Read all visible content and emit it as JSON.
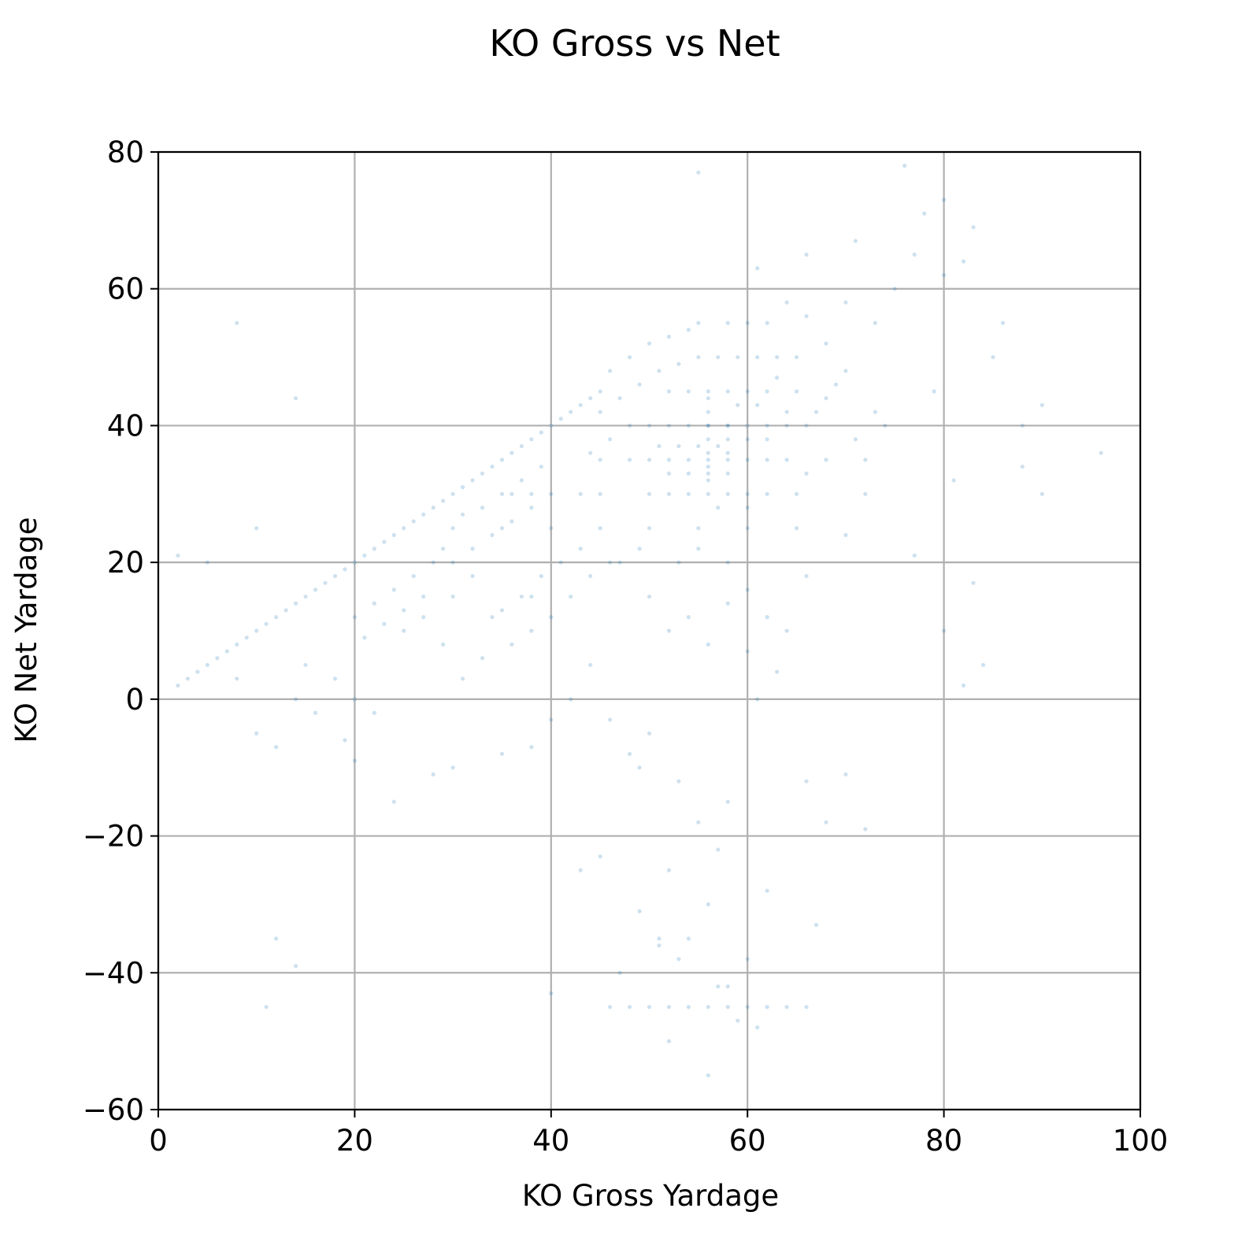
{
  "chart_data": {
    "type": "scatter",
    "title": "KO Gross vs Net",
    "xlabel": "KO Gross Yardage",
    "ylabel": "KO Net Yardage",
    "xlim": [
      0,
      100
    ],
    "ylim": [
      -60,
      80
    ],
    "xticks": [
      0,
      20,
      40,
      60,
      80,
      100
    ],
    "yticks": [
      -60,
      -40,
      -20,
      0,
      20,
      40,
      60,
      80
    ],
    "xtick_labels": [
      "0",
      "20",
      "40",
      "60",
      "80",
      "100"
    ],
    "ytick_labels": [
      "−60",
      "−40",
      "−20",
      "0",
      "20",
      "40",
      "60",
      "80"
    ],
    "grid": true,
    "point_color": "#1f77b4",
    "point_alpha": 0.1,
    "series": [
      {
        "points": [
          [
            2,
            2
          ],
          [
            3,
            3
          ],
          [
            4,
            4
          ],
          [
            5,
            5
          ],
          [
            6,
            6
          ],
          [
            7,
            7
          ],
          [
            8,
            8
          ],
          [
            9,
            9
          ],
          [
            10,
            10
          ],
          [
            11,
            11
          ],
          [
            12,
            12
          ],
          [
            13,
            13
          ],
          [
            14,
            14
          ],
          [
            15,
            15
          ],
          [
            16,
            16
          ],
          [
            17,
            17
          ],
          [
            18,
            18
          ],
          [
            19,
            19
          ],
          [
            20,
            20
          ],
          [
            21,
            21
          ],
          [
            22,
            22
          ],
          [
            23,
            23
          ],
          [
            24,
            24
          ],
          [
            25,
            25
          ],
          [
            26,
            26
          ],
          [
            27,
            27
          ],
          [
            28,
            28
          ],
          [
            29,
            29
          ],
          [
            30,
            30
          ],
          [
            31,
            31
          ],
          [
            32,
            32
          ],
          [
            33,
            33
          ],
          [
            34,
            34
          ],
          [
            35,
            35
          ],
          [
            36,
            36
          ],
          [
            37,
            37
          ],
          [
            38,
            38
          ],
          [
            39,
            39
          ],
          [
            40,
            40
          ],
          [
            41,
            41
          ],
          [
            42,
            42
          ],
          [
            43,
            43
          ],
          [
            44,
            44
          ],
          [
            45,
            45
          ],
          [
            35,
            25
          ],
          [
            40,
            25
          ],
          [
            45,
            25
          ],
          [
            50,
            25
          ],
          [
            55,
            25
          ],
          [
            60,
            25
          ],
          [
            65,
            25
          ],
          [
            30,
            25
          ],
          [
            48,
            35
          ],
          [
            50,
            35
          ],
          [
            52,
            35
          ],
          [
            54,
            35
          ],
          [
            56,
            35
          ],
          [
            58,
            35
          ],
          [
            60,
            35
          ],
          [
            62,
            35
          ],
          [
            64,
            35
          ],
          [
            48,
            40
          ],
          [
            50,
            40
          ],
          [
            52,
            40
          ],
          [
            54,
            40
          ],
          [
            56,
            40
          ],
          [
            58,
            40
          ],
          [
            60,
            40
          ],
          [
            62,
            40
          ],
          [
            64,
            40
          ],
          [
            50,
            30
          ],
          [
            52,
            30
          ],
          [
            54,
            30
          ],
          [
            56,
            30
          ],
          [
            58,
            30
          ],
          [
            60,
            30
          ],
          [
            62,
            30
          ],
          [
            65,
            30
          ],
          [
            52,
            45
          ],
          [
            54,
            45
          ],
          [
            56,
            45
          ],
          [
            58,
            45
          ],
          [
            60,
            45
          ],
          [
            62,
            45
          ],
          [
            65,
            45
          ],
          [
            55,
            50
          ],
          [
            57,
            50
          ],
          [
            59,
            50
          ],
          [
            61,
            50
          ],
          [
            63,
            50
          ],
          [
            65,
            50
          ],
          [
            45,
            30
          ],
          [
            45,
            35
          ],
          [
            43,
            30
          ],
          [
            40,
            30
          ],
          [
            38,
            30
          ],
          [
            36,
            30
          ],
          [
            46,
            38
          ],
          [
            44,
            36
          ],
          [
            50,
            15
          ],
          [
            53,
            20
          ],
          [
            55,
            22
          ],
          [
            57,
            28
          ],
          [
            47,
            20
          ],
          [
            49,
            22
          ],
          [
            60,
            28
          ],
          [
            58,
            20
          ],
          [
            55,
            55
          ],
          [
            58,
            55
          ],
          [
            60,
            55
          ],
          [
            62,
            55
          ],
          [
            64,
            58
          ],
          [
            66,
            56
          ],
          [
            68,
            52
          ],
          [
            70,
            58
          ],
          [
            50,
            -45
          ],
          [
            52,
            -45
          ],
          [
            54,
            -45
          ],
          [
            56,
            -45
          ],
          [
            58,
            -45
          ],
          [
            60,
            -45
          ],
          [
            62,
            -45
          ],
          [
            64,
            -45
          ],
          [
            66,
            -45
          ],
          [
            46,
            -45
          ],
          [
            48,
            -45
          ],
          [
            53,
            -12
          ],
          [
            55,
            -18
          ],
          [
            56,
            -30
          ],
          [
            58,
            -15
          ],
          [
            50,
            -5
          ],
          [
            52,
            -25
          ],
          [
            57,
            -22
          ],
          [
            60,
            7
          ],
          [
            54,
            -35
          ],
          [
            51,
            -35
          ],
          [
            30,
            -10
          ],
          [
            28,
            -11
          ],
          [
            35,
            -8
          ],
          [
            38,
            -7
          ],
          [
            40,
            -3
          ],
          [
            42,
            0
          ],
          [
            44,
            5
          ],
          [
            46,
            -3
          ],
          [
            48,
            -8
          ],
          [
            49,
            -10
          ],
          [
            25,
            10
          ],
          [
            27,
            12
          ],
          [
            30,
            15
          ],
          [
            32,
            18
          ],
          [
            34,
            12
          ],
          [
            36,
            8
          ],
          [
            38,
            15
          ],
          [
            33,
            6
          ],
          [
            29,
            8
          ],
          [
            31,
            3
          ],
          [
            15,
            5
          ],
          [
            18,
            3
          ],
          [
            20,
            0
          ],
          [
            22,
            -2
          ],
          [
            12,
            -7
          ],
          [
            10,
            -5
          ],
          [
            14,
            0
          ],
          [
            8,
            3
          ],
          [
            16,
            -2
          ],
          [
            19,
            -6
          ],
          [
            70,
            -11
          ],
          [
            68,
            -18
          ],
          [
            72,
            -19
          ],
          [
            66,
            -12
          ],
          [
            67,
            -33
          ],
          [
            62,
            -28
          ],
          [
            60,
            -38
          ],
          [
            58,
            -42
          ],
          [
            56,
            -55
          ],
          [
            52,
            -50
          ],
          [
            70,
            24
          ],
          [
            72,
            30
          ],
          [
            74,
            40
          ],
          [
            73,
            55
          ],
          [
            75,
            60
          ],
          [
            77,
            65
          ],
          [
            80,
            62
          ],
          [
            82,
            64
          ],
          [
            85,
            50
          ],
          [
            88,
            40
          ],
          [
            76,
            78
          ],
          [
            55,
            77
          ],
          [
            80,
            73
          ],
          [
            78,
            71
          ],
          [
            83,
            69
          ],
          [
            71,
            67
          ],
          [
            66,
            65
          ],
          [
            61,
            63
          ],
          [
            86,
            55
          ],
          [
            90,
            43
          ],
          [
            80,
            10
          ],
          [
            82,
            2
          ],
          [
            84,
            5
          ],
          [
            88,
            34
          ],
          [
            90,
            30
          ],
          [
            96,
            36
          ],
          [
            83,
            17
          ],
          [
            81,
            32
          ],
          [
            79,
            45
          ],
          [
            77,
            21
          ],
          [
            10,
            25
          ],
          [
            5,
            20
          ],
          [
            2,
            21
          ],
          [
            8,
            55
          ],
          [
            14,
            44
          ],
          [
            12,
            -35
          ],
          [
            11,
            -45
          ],
          [
            14,
            -39
          ],
          [
            20,
            -9
          ],
          [
            24,
            -15
          ],
          [
            43,
            -25
          ],
          [
            40,
            -43
          ],
          [
            45,
            -23
          ],
          [
            47,
            -40
          ],
          [
            49,
            -31
          ],
          [
            51,
            -36
          ],
          [
            53,
            -38
          ],
          [
            57,
            -42
          ],
          [
            59,
            -47
          ],
          [
            61,
            -48
          ],
          [
            38,
            10
          ],
          [
            40,
            12
          ],
          [
            42,
            15
          ],
          [
            44,
            18
          ],
          [
            46,
            20
          ],
          [
            43,
            22
          ],
          [
            41,
            20
          ],
          [
            39,
            18
          ],
          [
            37,
            15
          ],
          [
            35,
            13
          ],
          [
            52,
            10
          ],
          [
            54,
            12
          ],
          [
            56,
            8
          ],
          [
            58,
            14
          ],
          [
            60,
            16
          ],
          [
            62,
            12
          ],
          [
            64,
            10
          ],
          [
            66,
            18
          ],
          [
            63,
            4
          ],
          [
            61,
            0
          ],
          [
            52,
            33
          ],
          [
            54,
            33
          ],
          [
            56,
            33
          ],
          [
            58,
            33
          ],
          [
            60,
            38
          ],
          [
            62,
            38
          ],
          [
            64,
            42
          ],
          [
            51,
            37
          ],
          [
            53,
            37
          ],
          [
            55,
            37
          ],
          [
            57,
            37
          ],
          [
            59,
            43
          ],
          [
            61,
            43
          ],
          [
            63,
            47
          ],
          [
            56,
            40
          ],
          [
            56,
            38
          ],
          [
            56,
            36
          ],
          [
            56,
            34
          ],
          [
            56,
            32
          ],
          [
            56,
            42
          ],
          [
            56,
            44
          ],
          [
            58,
            38
          ],
          [
            58,
            36
          ],
          [
            58,
            40
          ],
          [
            46,
            48
          ],
          [
            48,
            50
          ],
          [
            50,
            52
          ],
          [
            52,
            53
          ],
          [
            54,
            54
          ],
          [
            47,
            44
          ],
          [
            49,
            46
          ],
          [
            51,
            48
          ],
          [
            53,
            49
          ],
          [
            45,
            42
          ],
          [
            66,
            40
          ],
          [
            68,
            44
          ],
          [
            70,
            48
          ],
          [
            67,
            42
          ],
          [
            69,
            46
          ],
          [
            71,
            38
          ],
          [
            73,
            42
          ],
          [
            72,
            35
          ],
          [
            68,
            35
          ],
          [
            66,
            33
          ],
          [
            30,
            20
          ],
          [
            32,
            22
          ],
          [
            34,
            24
          ],
          [
            36,
            26
          ],
          [
            38,
            28
          ],
          [
            31,
            27
          ],
          [
            33,
            28
          ],
          [
            35,
            30
          ],
          [
            37,
            32
          ],
          [
            39,
            34
          ],
          [
            20,
            12
          ],
          [
            22,
            14
          ],
          [
            24,
            16
          ],
          [
            26,
            18
          ],
          [
            21,
            9
          ],
          [
            23,
            11
          ],
          [
            25,
            13
          ],
          [
            27,
            15
          ],
          [
            28,
            20
          ],
          [
            29,
            22
          ]
        ]
      }
    ]
  }
}
